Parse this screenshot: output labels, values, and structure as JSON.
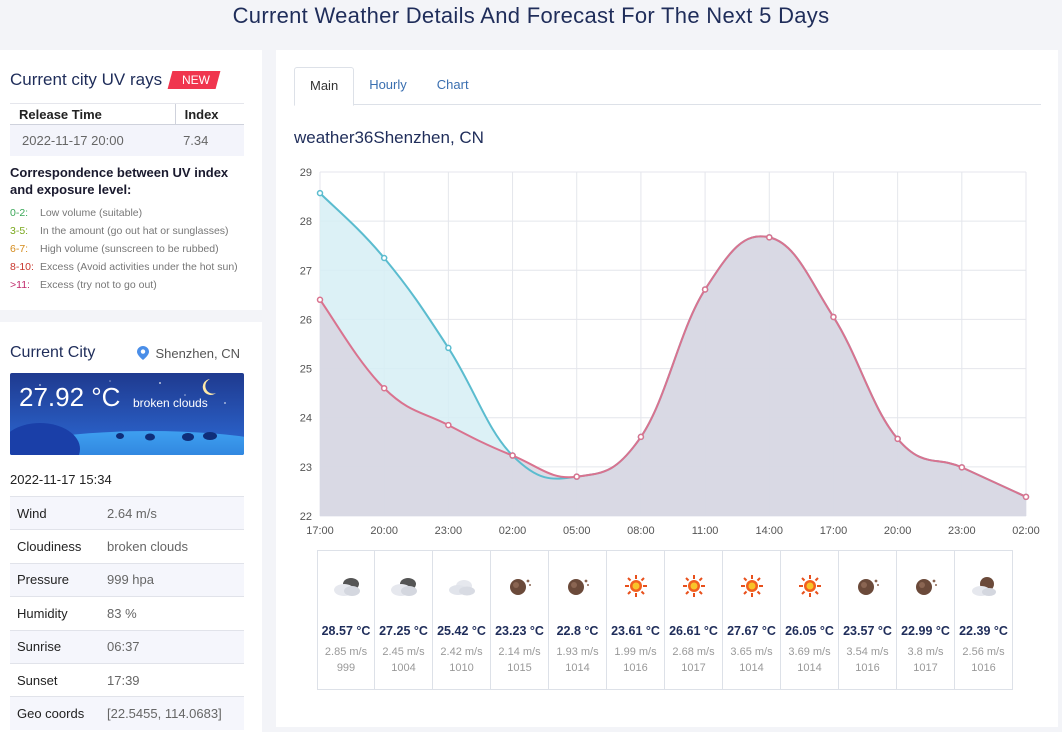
{
  "page_title": "Current Weather Details And Forecast For The Next 5 Days",
  "uv": {
    "title": "Current city UV rays",
    "badge": "NEW",
    "col_time": "Release Time",
    "col_index": "Index",
    "release_time": "2022-11-17 20:00",
    "index": "7.34",
    "corr_title": "Correspondence between UV index and exposure level:",
    "levels": [
      {
        "range": "0-2:",
        "desc": "Low volume (suitable)",
        "color": "#3aa757"
      },
      {
        "range": "3-5:",
        "desc": "In the amount (go out hat or sunglasses)",
        "color": "#7aa81e"
      },
      {
        "range": "6-7:",
        "desc": "High volume (sunscreen to be rubbed)",
        "color": "#d48a1a"
      },
      {
        "range": "8-10:",
        "desc": "Excess (Avoid activities under the hot sun)",
        "color": "#c8352b"
      },
      {
        "range": ">11:",
        "desc": "Excess (try not to go out)",
        "color": "#c0286b"
      }
    ]
  },
  "city": {
    "title": "Current City",
    "location": "Shenzhen, CN",
    "temp": "27.92 °C",
    "desc": "broken clouds",
    "time": "2022-11-17 15:34",
    "rows": [
      {
        "label": "Wind",
        "value": "2.64 m/s"
      },
      {
        "label": "Cloudiness",
        "value": "broken clouds"
      },
      {
        "label": "Pressure",
        "value": "999 hpa"
      },
      {
        "label": "Humidity",
        "value": "83 %"
      },
      {
        "label": "Sunrise",
        "value": "06:37"
      },
      {
        "label": "Sunset",
        "value": "17:39"
      },
      {
        "label": "Geo coords",
        "value": "[22.5455, 114.0683]"
      }
    ]
  },
  "tabs": [
    {
      "label": "Main",
      "active": true
    },
    {
      "label": "Hourly",
      "active": false
    },
    {
      "label": "Chart",
      "active": false
    }
  ],
  "chart_title": "weather36Shenzhen, CN",
  "chart_data": {
    "type": "area",
    "categories": [
      "17:00",
      "20:00",
      "23:00",
      "02:00",
      "05:00",
      "08:00",
      "11:00",
      "14:00",
      "17:00",
      "20:00",
      "23:00",
      "02:00"
    ],
    "series": [
      {
        "values": [
          28.57,
          27.25,
          25.42,
          23.23,
          22.8,
          23.61,
          26.61,
          27.67,
          26.05,
          23.57,
          22.99,
          22.39
        ],
        "color": "#5bbccf",
        "fill": "#d6eff4"
      },
      {
        "values": [
          26.4,
          24.6,
          23.85,
          23.23,
          22.8,
          23.61,
          26.61,
          27.67,
          26.05,
          23.57,
          22.99,
          22.39
        ],
        "color": "#d9738f",
        "fill": "#d8d5e0"
      }
    ],
    "yticks": [
      22,
      23,
      24,
      25,
      26,
      27,
      28,
      29
    ],
    "ylim": [
      22,
      29
    ],
    "grid": true
  },
  "forecast": [
    {
      "icon": "cloud-dark-icon",
      "temp": "28.57 °C",
      "wind": "2.85 m/s",
      "pressure": "999"
    },
    {
      "icon": "cloud-dark-icon",
      "temp": "27.25 °C",
      "wind": "2.45 m/s",
      "pressure": "1004"
    },
    {
      "icon": "cloud-icon",
      "temp": "25.42 °C",
      "wind": "2.42 m/s",
      "pressure": "1010"
    },
    {
      "icon": "moon-icon",
      "temp": "23.23 °C",
      "wind": "2.14 m/s",
      "pressure": "1015"
    },
    {
      "icon": "moon-icon",
      "temp": "22.8 °C",
      "wind": "1.93 m/s",
      "pressure": "1014"
    },
    {
      "icon": "sun-icon",
      "temp": "23.61 °C",
      "wind": "1.99 m/s",
      "pressure": "1016"
    },
    {
      "icon": "sun-icon",
      "temp": "26.61 °C",
      "wind": "2.68 m/s",
      "pressure": "1017"
    },
    {
      "icon": "sun-icon",
      "temp": "27.67 °C",
      "wind": "3.65 m/s",
      "pressure": "1014"
    },
    {
      "icon": "sun-icon",
      "temp": "26.05 °C",
      "wind": "3.69 m/s",
      "pressure": "1014"
    },
    {
      "icon": "moon-icon",
      "temp": "23.57 °C",
      "wind": "3.54 m/s",
      "pressure": "1016"
    },
    {
      "icon": "moon-icon",
      "temp": "22.99 °C",
      "wind": "3.8 m/s",
      "pressure": "1017"
    },
    {
      "icon": "moon-cloud-icon",
      "temp": "22.39 °C",
      "wind": "2.56 m/s",
      "pressure": "1016"
    }
  ]
}
